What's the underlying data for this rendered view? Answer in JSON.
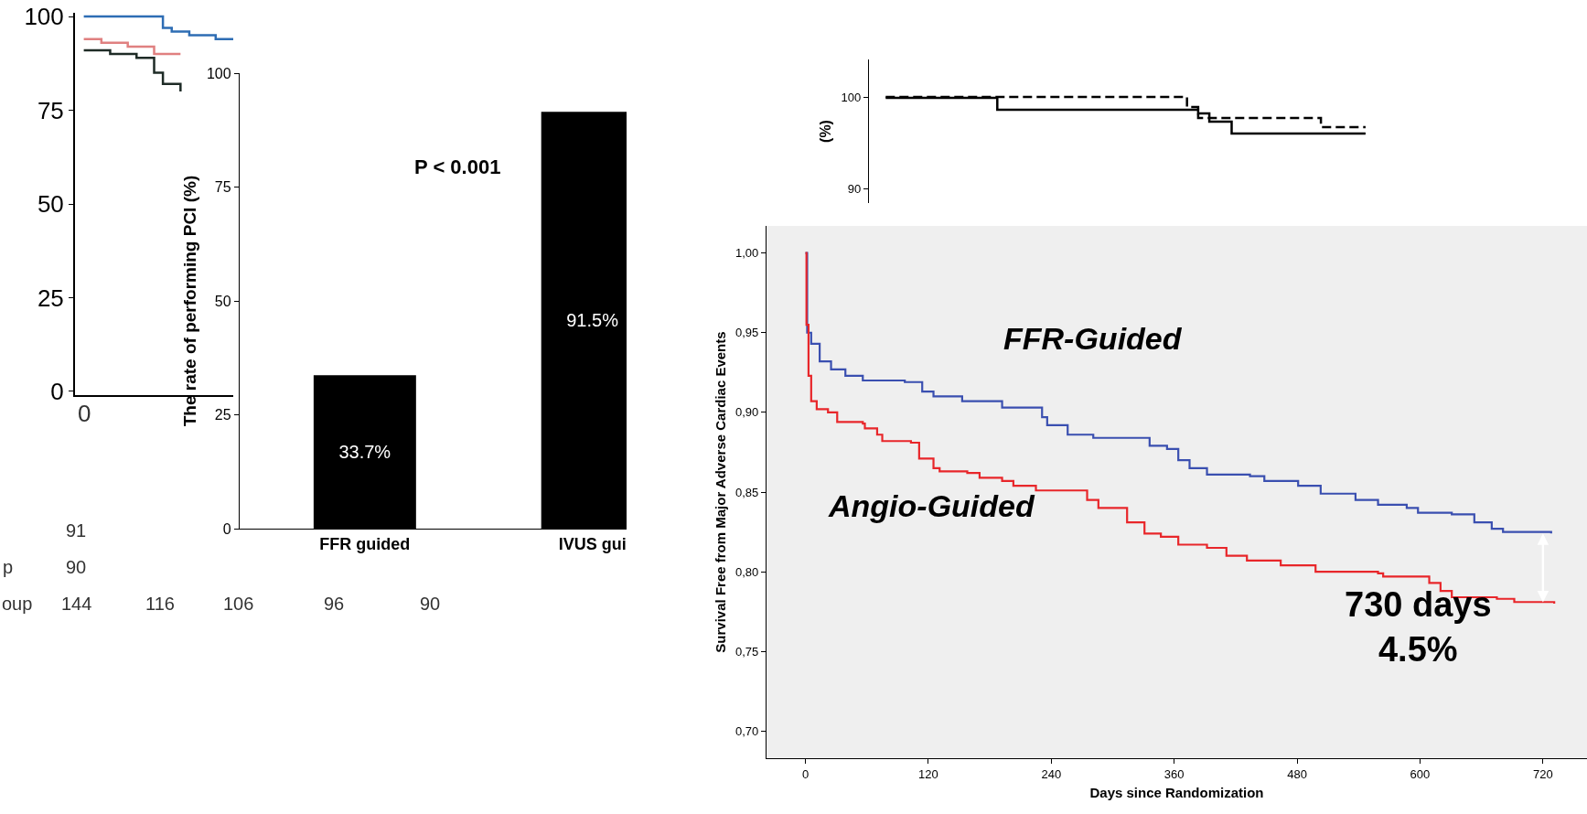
{
  "chart_data": [
    {
      "type": "step",
      "categories": [
        null,
        null,
        null,
        null,
        null,
        null,
        null,
        null,
        null,
        null,
        null,
        null,
        null,
        null,
        null,
        null,
        null,
        null
      ],
      "ylim": [
        -1,
        101
      ],
      "yticks": [
        0,
        25,
        50,
        75,
        100
      ],
      "series": [
        {
          "color": "#2e6db4",
          "values": [
            100,
            100,
            100,
            100,
            100,
            100,
            100,
            100,
            100,
            97,
            96,
            96,
            95,
            95,
            95,
            94,
            94,
            94
          ]
        },
        {
          "color": "#e08080",
          "values": [
            94,
            94,
            93,
            93,
            93,
            92,
            92,
            92,
            90,
            90,
            90,
            90,
            null,
            null,
            null,
            null,
            null,
            null
          ]
        },
        {
          "color": "#1e2b26",
          "values": [
            91,
            91,
            91,
            90,
            90,
            90,
            89,
            89,
            85,
            82,
            82,
            80,
            null,
            null,
            null,
            null,
            null,
            null
          ]
        }
      ],
      "annotations": [
        "91",
        "p",
        "90",
        "oup",
        "144",
        "116",
        "106",
        "96",
        "90",
        "0"
      ]
    },
    {
      "type": "bar",
      "categories": [
        "FFR guided",
        "IVUS gui"
      ],
      "values": [
        33.7,
        91.5
      ],
      "color": "#000000",
      "value_labels": [
        "33.7%",
        "91.5%"
      ],
      "ylabel": "The rate of performing PCI (%)",
      "ylim": [
        0,
        100
      ],
      "yticks": [
        0,
        25,
        50,
        75,
        100
      ],
      "annotations": [
        "P < 0.001"
      ]
    },
    {
      "type": "step",
      "ylabel": "(%)",
      "categories": [
        null,
        null,
        null,
        null,
        null,
        null,
        null,
        null,
        null,
        null,
        null,
        null,
        null,
        null,
        null,
        null,
        null,
        null,
        null,
        null,
        null,
        null,
        null,
        null,
        null,
        null,
        null,
        null,
        null,
        null,
        null,
        null,
        null,
        null,
        null,
        null,
        null,
        null,
        null,
        null,
        null,
        null,
        null,
        null
      ],
      "ylim": [
        88.4,
        104.1
      ],
      "yticks": [
        90,
        100
      ],
      "tick_labels": "y",
      "series": [
        {
          "color": "#000000",
          "line_style": "dashed",
          "values": [
            100,
            100,
            100,
            100,
            100,
            100,
            100,
            100,
            100,
            100,
            100,
            100,
            100,
            100,
            100,
            100,
            100,
            100,
            100,
            100,
            100,
            100,
            100,
            100,
            100,
            100,
            100,
            98.9,
            97.7,
            97.7,
            97.7,
            97.7,
            97.7,
            97.7,
            97.7,
            97.7,
            97.7,
            97.7,
            97.7,
            96.7,
            96.7,
            96.7,
            96.7,
            96.7
          ]
        },
        {
          "color": "#000000",
          "line_style": "solid",
          "values": [
            99.9,
            99.9,
            99.9,
            99.9,
            99.9,
            99.9,
            99.9,
            99.9,
            99.9,
            99.9,
            98.6,
            98.6,
            98.6,
            98.6,
            98.6,
            98.6,
            98.6,
            98.6,
            98.6,
            98.6,
            98.6,
            98.6,
            98.6,
            98.6,
            98.6,
            98.6,
            98.6,
            98.6,
            98.2,
            97.3,
            97.3,
            96.0,
            96.0,
            96.0,
            96.0,
            96.0,
            96.0,
            96.0,
            96.0,
            96.0,
            96.0,
            96.0,
            96.0,
            96.0
          ]
        }
      ]
    },
    {
      "type": "step",
      "xlabel": "Days since Randomization",
      "ylabel": "Survival Free from Major Adverse Cardiac Events",
      "xlim": [
        -38,
        763
      ],
      "xticks": [
        0,
        120,
        240,
        360,
        480,
        600,
        720
      ],
      "ylim": [
        0.683,
        1.017
      ],
      "yticks": [
        {
          "value": 0.7,
          "label": "0,70"
        },
        {
          "value": 0.75,
          "label": "0,75"
        },
        {
          "value": 0.8,
          "label": "0,80"
        },
        {
          "value": 0.85,
          "label": "0,85"
        },
        {
          "value": 0.9,
          "label": "0,90"
        },
        {
          "value": 0.95,
          "label": "0,95"
        },
        {
          "value": 1.0,
          "label": "1,00"
        }
      ],
      "series": [
        {
          "color": "#3a4fb0",
          "x": [
            0,
            1.7,
            5.6,
            13.9,
            25,
            39,
            56,
            97,
            114,
            125,
            153,
            192,
            231,
            236,
            256,
            281,
            320,
            336,
            353,
            364,
            375,
            392,
            434,
            448,
            481,
            503,
            537,
            559,
            587,
            598,
            631,
            653,
            670,
            681,
            728
          ],
          "values": [
            1.0,
            0.95,
            0.943,
            0.932,
            0.927,
            0.923,
            0.92,
            0.919,
            0.913,
            0.91,
            0.907,
            0.903,
            0.897,
            0.892,
            0.886,
            0.884,
            0.884,
            0.879,
            0.877,
            0.87,
            0.865,
            0.861,
            0.86,
            0.857,
            0.854,
            0.849,
            0.845,
            0.842,
            0.84,
            0.837,
            0.836,
            0.831,
            0.827,
            0.825,
            0.824
          ]
        },
        {
          "color": "#e8262a",
          "x": [
            0,
            1,
            3,
            5.6,
            11,
            22,
            31,
            56,
            58,
            70,
            75,
            103,
            111,
            125,
            131,
            158,
            170,
            192,
            203,
            225,
            264,
            275,
            286,
            314,
            331,
            347,
            364,
            392,
            411,
            431,
            464,
            498,
            559,
            564,
            609,
            620,
            631,
            675,
            692,
            731
          ],
          "values": [
            1.0,
            0.955,
            0.923,
            0.907,
            0.902,
            0.9,
            0.894,
            0.893,
            0.89,
            0.886,
            0.882,
            0.881,
            0.871,
            0.865,
            0.863,
            0.862,
            0.859,
            0.857,
            0.854,
            0.851,
            0.851,
            0.845,
            0.84,
            0.831,
            0.824,
            0.822,
            0.817,
            0.815,
            0.81,
            0.807,
            0.804,
            0.8,
            0.799,
            0.797,
            0.793,
            0.788,
            0.784,
            0.783,
            0.781,
            0.78
          ]
        }
      ],
      "annotations": [
        "FFR-Guided",
        "Angio-Guided",
        "730 days\n4.5%"
      ]
    }
  ]
}
